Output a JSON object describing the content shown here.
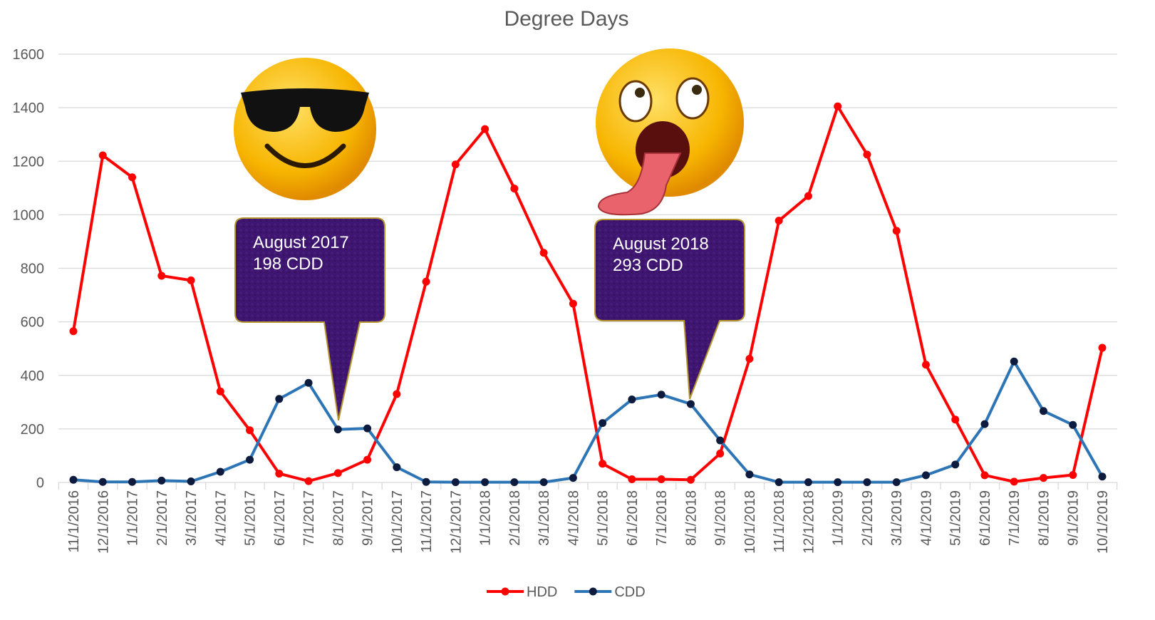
{
  "chart_data": {
    "type": "line",
    "title": "Degree Days",
    "categories": [
      "11/1/2016",
      "12/1/2016",
      "1/1/2017",
      "2/1/2017",
      "3/1/2017",
      "4/1/2017",
      "5/1/2017",
      "6/1/2017",
      "7/1/2017",
      "8/1/2017",
      "9/1/2017",
      "10/1/2017",
      "11/1/2017",
      "12/1/2017",
      "1/1/2018",
      "2/1/2018",
      "3/1/2018",
      "4/1/2018",
      "5/1/2018",
      "6/1/2018",
      "7/1/2018",
      "8/1/2018",
      "9/1/2018",
      "10/1/2018",
      "11/1/2018",
      "12/1/2018",
      "1/1/2019",
      "2/1/2019",
      "3/1/2019",
      "4/1/2019",
      "5/1/2019",
      "6/1/2019",
      "7/1/2019",
      "8/1/2019",
      "9/1/2019",
      "10/1/2019"
    ],
    "series": [
      {
        "name": "HDD",
        "color": "#ff0000",
        "marker_color": "#ff0000",
        "values": [
          565,
          1222,
          1140,
          772,
          755,
          340,
          195,
          33,
          5,
          35,
          85,
          330,
          750,
          1188,
          1320,
          1098,
          858,
          668,
          70,
          12,
          12,
          10,
          108,
          462,
          978,
          1070,
          1405,
          1225,
          940,
          440,
          235,
          27,
          3,
          17,
          28,
          503
        ]
      },
      {
        "name": "CDD",
        "color": "#2e75b6",
        "marker_color": "#0d1b3e",
        "values": [
          10,
          2,
          2,
          7,
          4,
          40,
          85,
          312,
          372,
          198,
          202,
          57,
          2,
          1,
          1,
          1,
          1,
          17,
          222,
          310,
          328,
          293,
          157,
          30,
          1,
          1,
          1,
          1,
          1,
          27,
          67,
          218,
          452,
          267,
          215,
          22
        ]
      }
    ],
    "ylim": [
      0,
      1600
    ],
    "yticks": [
      0,
      200,
      400,
      600,
      800,
      1000,
      1200,
      1400,
      1600
    ],
    "grid": true,
    "legend": "bottom",
    "annotations": [
      {
        "lines": [
          "August 2017",
          "198 CDD"
        ]
      },
      {
        "lines": [
          "August 2018",
          "293 CDD"
        ]
      }
    ]
  }
}
